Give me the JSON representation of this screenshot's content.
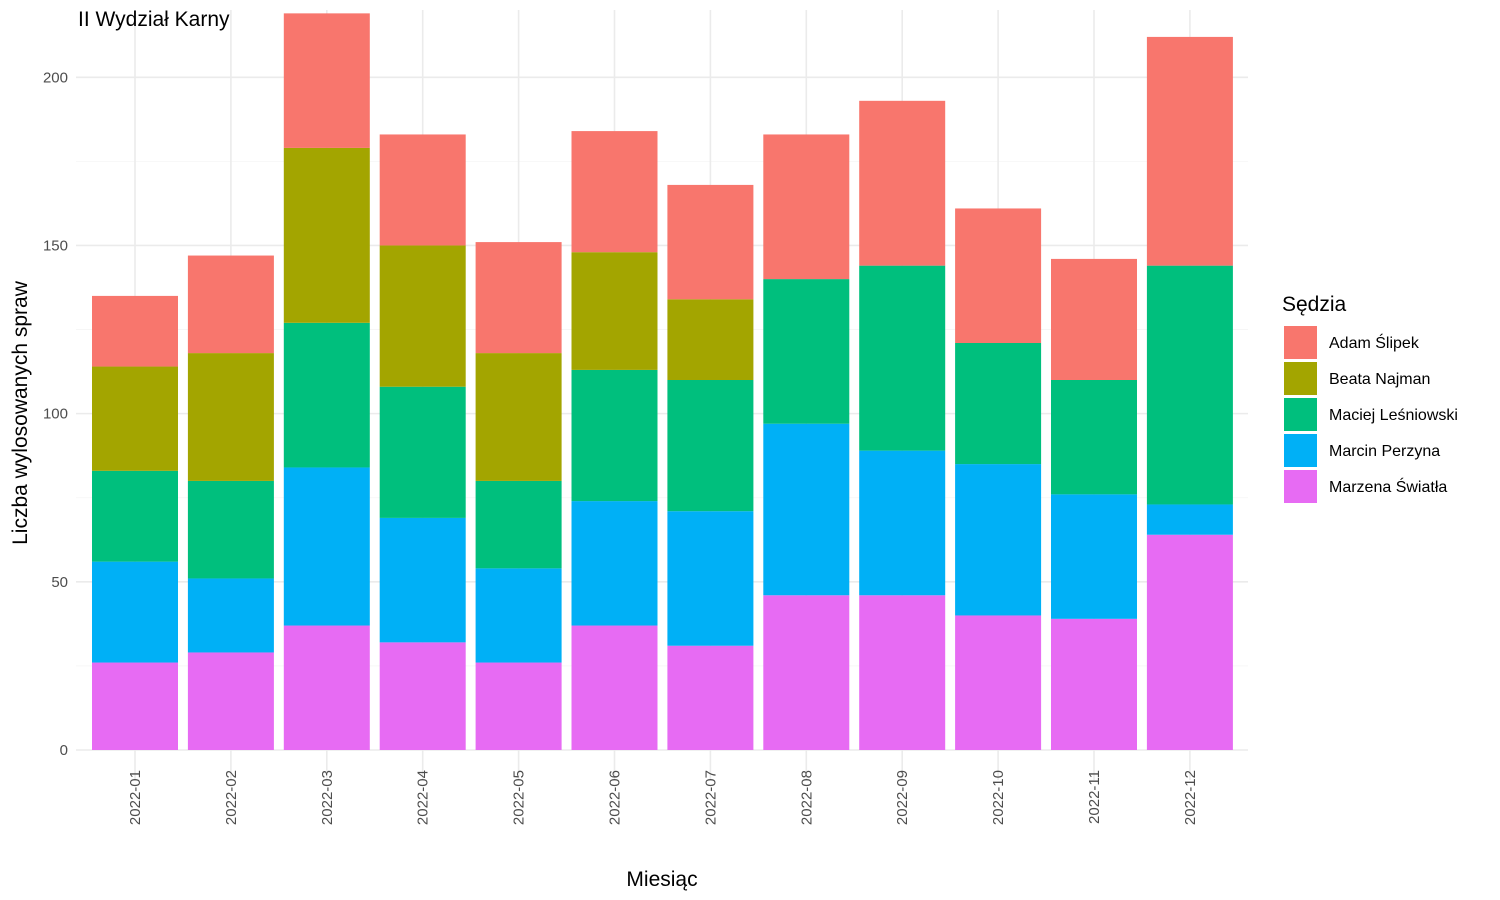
{
  "chart_data": {
    "type": "bar",
    "stacked": true,
    "title": "II Wydział Karny",
    "xlabel": "Miesiąc",
    "ylabel": "Liczba wylosowanych spraw",
    "ylim": [
      0,
      220
    ],
    "yticks": [
      0,
      50,
      100,
      150,
      200
    ],
    "grid": true,
    "legend_position": "right",
    "legend_title": "Sędzia",
    "categories": [
      "2022-01",
      "2022-02",
      "2022-03",
      "2022-04",
      "2022-05",
      "2022-06",
      "2022-07",
      "2022-08",
      "2022-09",
      "2022-10",
      "2022-11",
      "2022-12"
    ],
    "series": [
      {
        "name": "Adam Ślipek",
        "color": "#F8766D",
        "values": [
          21,
          29,
          40,
          33,
          33,
          36,
          34,
          43,
          49,
          40,
          36,
          68
        ]
      },
      {
        "name": "Beata Najman",
        "color": "#A3A500",
        "values": [
          31,
          38,
          52,
          42,
          38,
          35,
          24,
          0,
          0,
          0,
          0,
          0
        ]
      },
      {
        "name": "Maciej Leśniowski",
        "color": "#00BF7D",
        "values": [
          27,
          29,
          43,
          39,
          26,
          39,
          39,
          43,
          55,
          36,
          34,
          71
        ]
      },
      {
        "name": "Marcin Perzyna",
        "color": "#00B0F6",
        "values": [
          30,
          22,
          47,
          37,
          28,
          37,
          40,
          51,
          43,
          45,
          37,
          9
        ]
      },
      {
        "name": "Marzena Światła",
        "color": "#E76BF3",
        "values": [
          26,
          29,
          37,
          32,
          26,
          37,
          31,
          46,
          46,
          40,
          39,
          64
        ]
      }
    ]
  }
}
